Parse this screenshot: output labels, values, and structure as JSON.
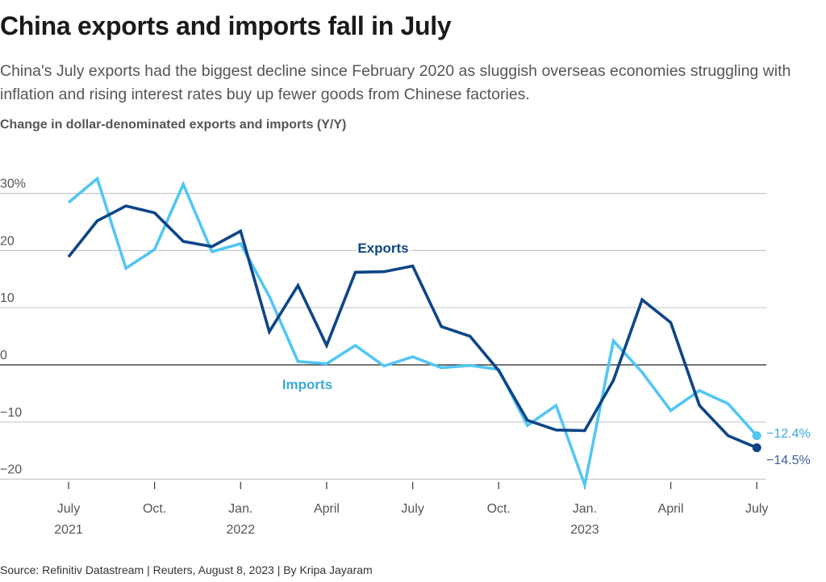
{
  "header": {
    "title": "China exports and imports fall in July",
    "subtitle": "China's July exports had the biggest decline since February 2020 as sluggish overseas economies struggling with inflation and rising interest rates buy up fewer goods from Chinese factories."
  },
  "footer": {
    "source": "Source: Refinitiv Datastream | Reuters, August 8, 2023 | By Kripa Jayaram"
  },
  "chart_data": {
    "type": "line",
    "title": "Change in dollar-denominated exports and imports (Y/Y)",
    "xlabel": "",
    "ylabel": "",
    "ylim": [
      -20,
      30
    ],
    "grid": true,
    "x": [
      "Jul 2021",
      "Aug 2021",
      "Sep 2021",
      "Oct 2021",
      "Nov 2021",
      "Dec 2021",
      "Jan 2022",
      "Feb 2022",
      "Mar 2022",
      "Apr 2022",
      "May 2022",
      "Jun 2022",
      "Jul 2022",
      "Aug 2022",
      "Sep 2022",
      "Oct 2022",
      "Nov 2022",
      "Dec 2022",
      "Jan 2023",
      "Feb 2023",
      "Mar 2023",
      "Apr 2023",
      "May 2023",
      "Jun 2023",
      "Jul 2023"
    ],
    "y_ticks": [
      {
        "value": 30,
        "label": "30%"
      },
      {
        "value": 20,
        "label": "20"
      },
      {
        "value": 10,
        "label": "10"
      },
      {
        "value": 0,
        "label": "0"
      },
      {
        "value": -10,
        "label": "−10"
      },
      {
        "value": -20,
        "label": "−20"
      }
    ],
    "x_ticks": [
      {
        "index": 0,
        "label": "July",
        "year": "2021"
      },
      {
        "index": 3,
        "label": "Oct.",
        "year": ""
      },
      {
        "index": 6,
        "label": "Jan.",
        "year": "2022"
      },
      {
        "index": 9,
        "label": "April",
        "year": ""
      },
      {
        "index": 12,
        "label": "July",
        "year": ""
      },
      {
        "index": 15,
        "label": "Oct.",
        "year": ""
      },
      {
        "index": 18,
        "label": "Jan.",
        "year": "2023"
      },
      {
        "index": 21,
        "label": "April",
        "year": ""
      },
      {
        "index": 24,
        "label": "July",
        "year": ""
      }
    ],
    "series": [
      {
        "name": "Exports",
        "color": "#0e4587",
        "end_label": "−14.5%",
        "end_label_color": "#3d5f9a",
        "values": [
          18.9,
          25.2,
          27.8,
          26.6,
          21.6,
          20.7,
          23.4,
          5.8,
          13.9,
          3.4,
          16.2,
          16.3,
          17.3,
          6.7,
          5.0,
          -1.0,
          -9.7,
          -11.4,
          -11.5,
          -2.7,
          11.4,
          7.4,
          -7.1,
          -12.4,
          -14.5
        ]
      },
      {
        "name": "Imports",
        "color": "#52c6f4",
        "end_label": "−12.4%",
        "end_label_color": "#3aa9db",
        "values": [
          28.4,
          32.6,
          16.9,
          20.2,
          31.6,
          19.8,
          21.2,
          12.0,
          0.6,
          0.2,
          3.4,
          -0.2,
          1.4,
          -0.5,
          -0.1,
          -0.8,
          -10.6,
          -7.1,
          -21.0,
          4.2,
          -1.3,
          -8.0,
          -4.5,
          -6.8,
          -12.4
        ]
      }
    ]
  }
}
